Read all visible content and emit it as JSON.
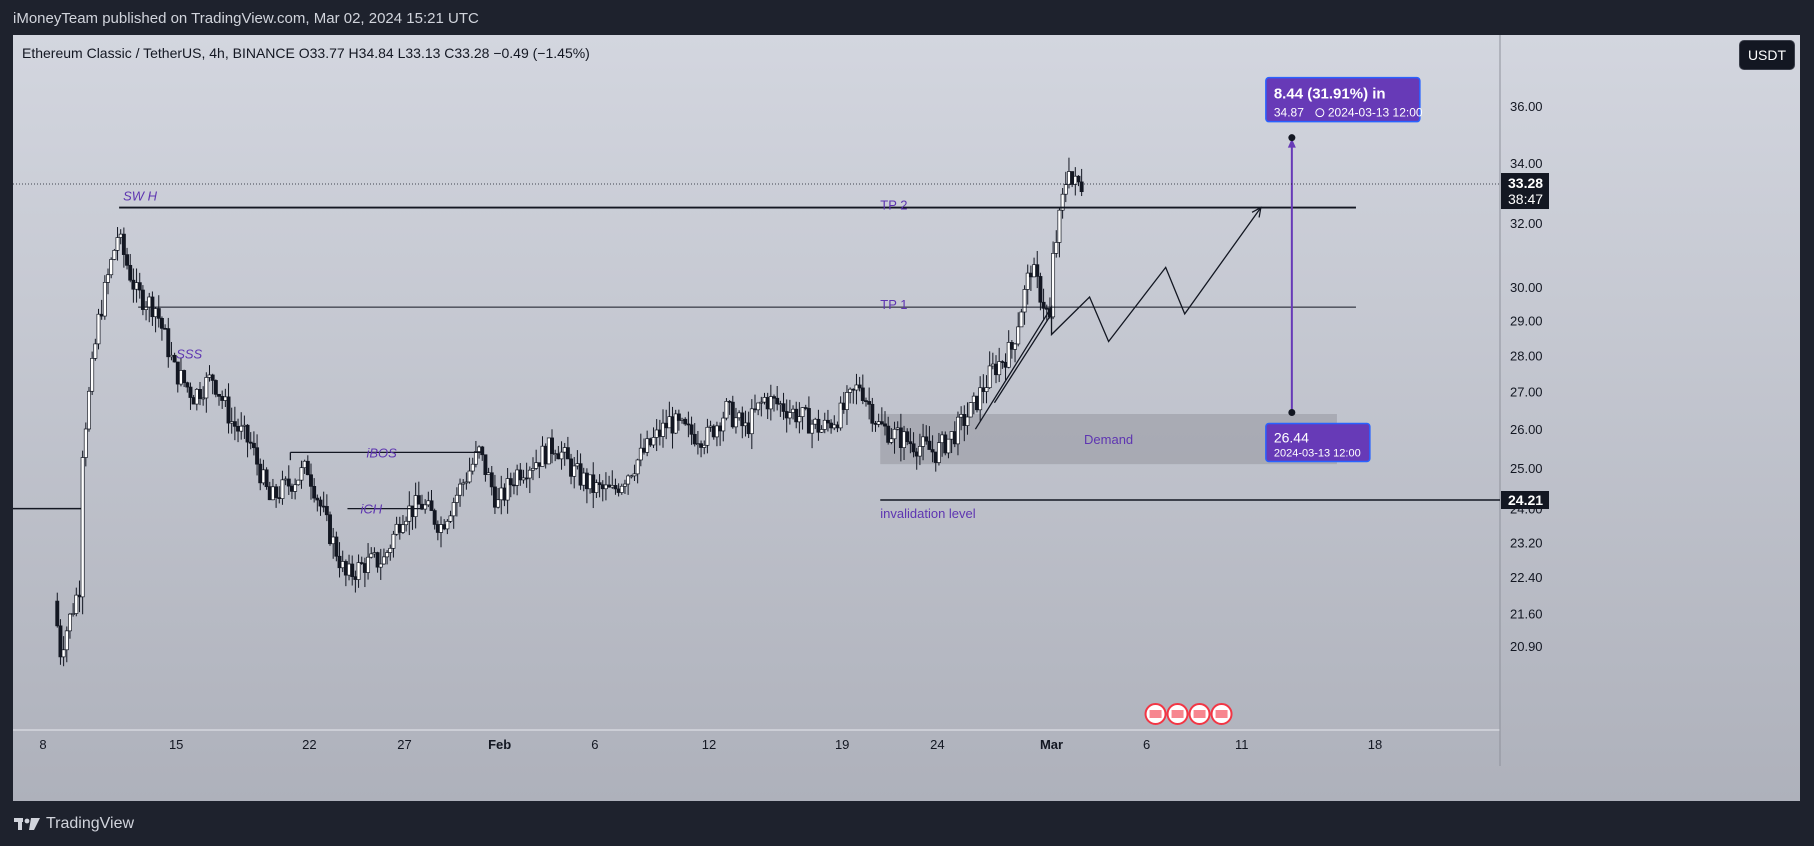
{
  "header": {
    "published": "iMoneyTeam published on TradingView.com, Mar 02, 2024 15:21 UTC"
  },
  "symbol_line": "Ethereum Classic / TetherUS, 4h, BINANCE  O33.77  H34.84  L33.13  C33.28  −0.49 (−1.45%)",
  "currency_button": "USDT",
  "footer": {
    "brand": "TradingView"
  },
  "colors": {
    "background": "#1e222d",
    "accent": "#673ab7",
    "candles": "#131722",
    "dark_label": "#131722"
  },
  "chart_data": {
    "type": "candlestick",
    "symbol": "Ethereum Classic / TetherUS",
    "interval": "4h",
    "exchange": "BINANCE",
    "ohlc": {
      "open": 33.77,
      "high": 34.84,
      "low": 33.13,
      "close": 33.28,
      "change": -0.49,
      "change_pct": -1.45
    },
    "y_scale": "log",
    "ylim": [
      20.9,
      36.0
    ],
    "y_ticks": [
      "36.00",
      "34.00",
      "32.00",
      "30.00",
      "29.00",
      "28.00",
      "27.00",
      "26.00",
      "25.00",
      "24.00",
      "23.20",
      "22.40",
      "21.60",
      "20.90"
    ],
    "x_labels": [
      "8",
      "15",
      "22",
      "27",
      "Feb",
      "6",
      "12",
      "19",
      "24",
      "Mar",
      "6",
      "11",
      "18"
    ],
    "price_path": [
      [
        "2024-01-08",
        24.0
      ],
      [
        "2024-01-09",
        20.8
      ],
      [
        "2024-01-10",
        22.2
      ],
      [
        "2024-01-10",
        24.8
      ],
      [
        "2024-01-11",
        29.0
      ],
      [
        "2024-01-12",
        31.6
      ],
      [
        "2024-01-13",
        29.8
      ],
      [
        "2024-01-14",
        29.4
      ],
      [
        "2024-01-15",
        27.6
      ],
      [
        "2024-01-16",
        26.9
      ],
      [
        "2024-01-17",
        27.4
      ],
      [
        "2024-01-18",
        26.2
      ],
      [
        "2024-01-19",
        25.6
      ],
      [
        "2024-01-20",
        24.2
      ],
      [
        "2024-01-21",
        24.6
      ],
      [
        "2024-01-22",
        25.0
      ],
      [
        "2024-01-23",
        23.6
      ],
      [
        "2024-01-24",
        22.4
      ],
      [
        "2024-01-25",
        22.7
      ],
      [
        "2024-01-26",
        22.8
      ],
      [
        "2024-01-27",
        23.9
      ],
      [
        "2024-01-28",
        24.1
      ],
      [
        "2024-01-29",
        23.6
      ],
      [
        "2024-01-30",
        24.5
      ],
      [
        "2024-01-31",
        25.4
      ],
      [
        "2024-02-01",
        24.1
      ],
      [
        "2024-02-02",
        24.9
      ],
      [
        "2024-02-03",
        25.2
      ],
      [
        "2024-02-04",
        25.6
      ],
      [
        "2024-02-05",
        24.9
      ],
      [
        "2024-02-06",
        24.5
      ],
      [
        "2024-02-07",
        24.4
      ],
      [
        "2024-02-08",
        25.0
      ],
      [
        "2024-02-09",
        25.6
      ],
      [
        "2024-02-10",
        26.2
      ],
      [
        "2024-02-11",
        25.9
      ],
      [
        "2024-02-12",
        25.8
      ],
      [
        "2024-02-13",
        26.5
      ],
      [
        "2024-02-14",
        26.0
      ],
      [
        "2024-02-15",
        26.8
      ],
      [
        "2024-02-16",
        26.6
      ],
      [
        "2024-02-17",
        26.3
      ],
      [
        "2024-02-18",
        26.0
      ],
      [
        "2024-02-19",
        26.4
      ],
      [
        "2024-02-20",
        27.2
      ],
      [
        "2024-02-21",
        26.1
      ],
      [
        "2024-02-22",
        25.8
      ],
      [
        "2024-02-23",
        25.6
      ],
      [
        "2024-02-24",
        25.4
      ],
      [
        "2024-02-25",
        25.9
      ],
      [
        "2024-02-26",
        26.6
      ],
      [
        "2024-02-27",
        27.6
      ],
      [
        "2024-02-28",
        28.2
      ],
      [
        "2024-02-29",
        30.6
      ],
      [
        "2024-03-01",
        29.0
      ],
      [
        "2024-03-01",
        30.2
      ],
      [
        "2024-03-02",
        34.0
      ],
      [
        "2024-03-02",
        33.28
      ]
    ],
    "levels": [
      {
        "label": "SW H",
        "price": 32.5
      },
      {
        "label": "TP 2",
        "price": 32.5
      },
      {
        "label": "TP 1",
        "price": 29.4
      },
      {
        "label": "invalidation level",
        "price": 24.21
      }
    ],
    "annotations": {
      "sss": "SSS",
      "ibos": "iBOS",
      "ich": "iCH",
      "demand": "Demand"
    },
    "demand_zone": {
      "top": 26.4,
      "bottom": 25.1,
      "from": "2024-02-21",
      "to": "2024-03-16"
    },
    "current_price": {
      "value": "33.28",
      "countdown": "38:47"
    },
    "invalidation_price": "24.21",
    "projection": {
      "title": "8.44 (31.91%) in",
      "from_label": "26.44",
      "from_date": "2024-03-13 12:00",
      "to_price": "34.87",
      "to_date": "2024-03-13  12:00"
    }
  }
}
